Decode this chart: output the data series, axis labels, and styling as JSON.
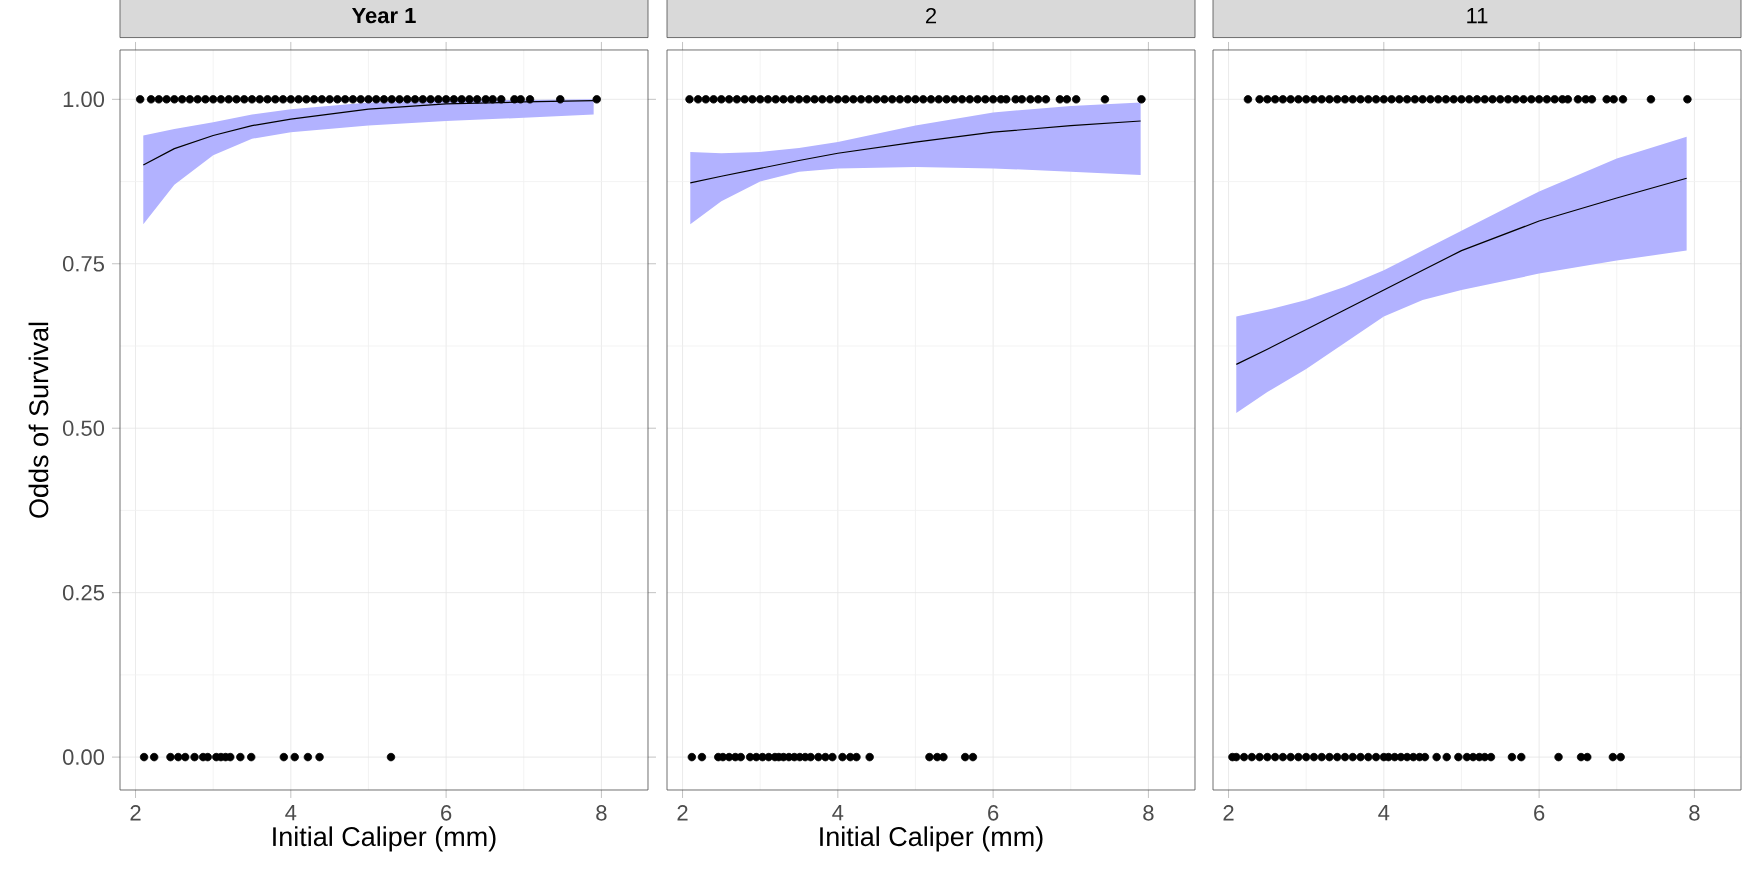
{
  "chart_data": [
    {
      "type": "scatter",
      "title": "Year 1",
      "xlabel": "Initial Caliper (mm)",
      "ylabel": "Odds of Survival",
      "xlim": [
        1.8,
        8.6
      ],
      "ylim": [
        -0.05,
        1.075
      ],
      "xticks": [
        2,
        4,
        6,
        8
      ],
      "yticks": [
        {
          "value": 0,
          "label": "0.00"
        },
        {
          "value": 0.25,
          "label": "0.25"
        },
        {
          "value": 0.5,
          "label": "0.50"
        },
        {
          "value": 0.75,
          "label": "0.75"
        },
        {
          "value": 1,
          "label": "1.00"
        }
      ],
      "grid": true,
      "marker": "circle",
      "series": [
        {
          "type": "line",
          "color": "#000000",
          "marker": "none",
          "x": [
            2.1,
            2.5,
            3,
            3.5,
            4,
            5,
            6,
            7,
            7.9
          ],
          "values": [
            0.9,
            0.925,
            0.945,
            0.96,
            0.97,
            0.985,
            0.993,
            0.996,
            0.998
          ],
          "lower": [
            0.81,
            0.87,
            0.915,
            0.94,
            0.95,
            0.96,
            0.967,
            0.972,
            0.977
          ],
          "upper": [
            0.945,
            0.955,
            0.965,
            0.977,
            0.985,
            0.995,
            0.998,
            0.999,
            1.0
          ]
        },
        {
          "color": "#000000",
          "x": [
            2.06,
            2.2,
            2.3,
            2.4,
            2.5,
            2.6,
            2.7,
            2.8,
            2.9,
            3.0,
            3.1,
            3.2,
            3.3,
            3.4,
            3.5,
            3.6,
            3.7,
            3.8,
            3.9,
            4.0,
            4.1,
            4.2,
            4.3,
            4.4,
            4.5,
            4.6,
            4.7,
            4.8,
            4.9,
            5.0,
            5.1,
            5.2,
            5.3,
            5.4,
            5.5,
            5.6,
            5.7,
            5.8,
            5.9,
            6.0,
            6.1,
            6.2,
            6.3,
            6.4,
            6.51,
            6.6,
            6.71,
            6.88,
            6.96,
            7.08,
            7.47,
            7.94
          ],
          "values": [
            1,
            1,
            1,
            1,
            1,
            1,
            1,
            1,
            1,
            1,
            1,
            1,
            1,
            1,
            1,
            1,
            1,
            1,
            1,
            1,
            1,
            1,
            1,
            1,
            1,
            1,
            1,
            1,
            1,
            1,
            1,
            1,
            1,
            1,
            1,
            1,
            1,
            1,
            1,
            1,
            1,
            1,
            1,
            1,
            1,
            1,
            1,
            1,
            1,
            1,
            1,
            1
          ]
        },
        {
          "color": "#000000",
          "x": [
            2.11,
            2.24,
            2.45,
            2.55,
            2.64,
            2.76,
            2.87,
            2.93,
            3.04,
            3.1,
            3.16,
            3.22,
            3.35,
            3.49,
            3.91,
            4.05,
            4.22,
            4.37,
            5.29
          ],
          "values": [
            0,
            0,
            0,
            0,
            0,
            0,
            0,
            0,
            0,
            0,
            0,
            0,
            0,
            0,
            0,
            0,
            0,
            0,
            0
          ]
        }
      ]
    },
    {
      "type": "scatter",
      "title": "2",
      "xlabel": "Initial Caliper (mm)",
      "xlim": [
        1.8,
        8.6
      ],
      "ylim": [
        -0.05,
        1.075
      ],
      "xticks": [
        2,
        4,
        6,
        8
      ],
      "yticks": [
        {
          "value": 0,
          "label": null
        },
        {
          "value": 0.25,
          "label": null
        },
        {
          "value": 0.5,
          "label": null
        },
        {
          "value": 0.75,
          "label": null
        },
        {
          "value": 1,
          "label": null
        }
      ],
      "tick_labels": "x",
      "grid": true,
      "marker": "circle",
      "series": [
        {
          "type": "line",
          "color": "#000000",
          "marker": "none",
          "x": [
            2.1,
            2.5,
            3,
            3.5,
            4,
            5,
            6,
            7,
            7.9
          ],
          "values": [
            0.873,
            0.883,
            0.895,
            0.907,
            0.918,
            0.935,
            0.95,
            0.96,
            0.967
          ],
          "lower": [
            0.81,
            0.845,
            0.875,
            0.89,
            0.895,
            0.897,
            0.895,
            0.89,
            0.885
          ],
          "upper": [
            0.92,
            0.918,
            0.92,
            0.926,
            0.935,
            0.96,
            0.98,
            0.99,
            0.995
          ]
        },
        {
          "color": "#000000",
          "x": [
            2.09,
            2.2,
            2.3,
            2.4,
            2.5,
            2.6,
            2.7,
            2.8,
            2.9,
            3.0,
            3.1,
            3.2,
            3.3,
            3.4,
            3.5,
            3.6,
            3.7,
            3.8,
            3.9,
            4.0,
            4.1,
            4.2,
            4.3,
            4.4,
            4.5,
            4.6,
            4.7,
            4.8,
            4.9,
            5.0,
            5.1,
            5.2,
            5.3,
            5.4,
            5.5,
            5.6,
            5.7,
            5.8,
            5.9,
            6.0,
            6.1,
            6.17,
            6.29,
            6.37,
            6.48,
            6.58,
            6.68,
            6.86,
            6.95,
            7.07,
            7.44,
            7.91
          ],
          "values": [
            1,
            1,
            1,
            1,
            1,
            1,
            1,
            1,
            1,
            1,
            1,
            1,
            1,
            1,
            1,
            1,
            1,
            1,
            1,
            1,
            1,
            1,
            1,
            1,
            1,
            1,
            1,
            1,
            1,
            1,
            1,
            1,
            1,
            1,
            1,
            1,
            1,
            1,
            1,
            1,
            1,
            1,
            1,
            1,
            1,
            1,
            1,
            1,
            1,
            1,
            1,
            1
          ]
        },
        {
          "color": "#000000",
          "x": [
            2.12,
            2.25,
            2.46,
            2.52,
            2.6,
            2.68,
            2.75,
            2.87,
            2.95,
            3.03,
            3.11,
            3.19,
            3.24,
            3.3,
            3.37,
            3.44,
            3.51,
            3.58,
            3.65,
            3.75,
            3.84,
            3.93,
            4.06,
            4.16,
            4.24,
            4.41,
            5.18,
            5.28,
            5.36,
            5.64,
            5.74
          ],
          "values": [
            0,
            0,
            0,
            0,
            0,
            0,
            0,
            0,
            0,
            0,
            0,
            0,
            0,
            0,
            0,
            0,
            0,
            0,
            0,
            0,
            0,
            0,
            0,
            0,
            0,
            0,
            0,
            0,
            0,
            0,
            0
          ]
        }
      ]
    },
    {
      "type": "scatter",
      "title": "11",
      "xlim": [
        1.8,
        8.6
      ],
      "ylim": [
        -0.05,
        1.075
      ],
      "xticks": [
        2,
        4,
        6,
        8
      ],
      "yticks": [
        {
          "value": 0,
          "label": null
        },
        {
          "value": 0.25,
          "label": null
        },
        {
          "value": 0.5,
          "label": null
        },
        {
          "value": 0.75,
          "label": null
        },
        {
          "value": 1,
          "label": null
        }
      ],
      "tick_labels": "x",
      "grid": true,
      "marker": "circle",
      "series": [
        {
          "type": "line",
          "color": "#000000",
          "marker": "none",
          "x": [
            2.1,
            2.5,
            3,
            3.5,
            4,
            4.5,
            5,
            6,
            7,
            7.9
          ],
          "values": [
            0.597,
            0.62,
            0.65,
            0.68,
            0.71,
            0.74,
            0.77,
            0.815,
            0.85,
            0.88
          ],
          "lower": [
            0.523,
            0.555,
            0.59,
            0.63,
            0.67,
            0.695,
            0.71,
            0.735,
            0.755,
            0.77
          ],
          "upper": [
            0.67,
            0.68,
            0.695,
            0.715,
            0.74,
            0.77,
            0.8,
            0.86,
            0.91,
            0.943
          ]
        },
        {
          "color": "#000000",
          "x": [
            2.25,
            2.4,
            2.5,
            2.6,
            2.7,
            2.8,
            2.9,
            3.0,
            3.1,
            3.2,
            3.3,
            3.4,
            3.5,
            3.6,
            3.7,
            3.8,
            3.9,
            4.0,
            4.1,
            4.2,
            4.3,
            4.4,
            4.5,
            4.6,
            4.7,
            4.8,
            4.9,
            5.0,
            5.1,
            5.2,
            5.3,
            5.4,
            5.5,
            5.6,
            5.7,
            5.8,
            5.9,
            6.0,
            6.1,
            6.2,
            6.3,
            6.37,
            6.5,
            6.6,
            6.68,
            6.87,
            6.96,
            7.08,
            7.44,
            7.91
          ],
          "values": [
            1,
            1,
            1,
            1,
            1,
            1,
            1,
            1,
            1,
            1,
            1,
            1,
            1,
            1,
            1,
            1,
            1,
            1,
            1,
            1,
            1,
            1,
            1,
            1,
            1,
            1,
            1,
            1,
            1,
            1,
            1,
            1,
            1,
            1,
            1,
            1,
            1,
            1,
            1,
            1,
            1,
            1,
            1,
            1,
            1,
            1,
            1,
            1,
            1,
            1
          ]
        },
        {
          "color": "#000000",
          "x": [
            2.05,
            2.1,
            2.2,
            2.3,
            2.4,
            2.5,
            2.6,
            2.7,
            2.8,
            2.9,
            3.0,
            3.1,
            3.2,
            3.3,
            3.4,
            3.5,
            3.6,
            3.7,
            3.8,
            3.9,
            4.0,
            4.06,
            4.14,
            4.22,
            4.3,
            4.38,
            4.46,
            4.53,
            4.68,
            4.81,
            4.96,
            5.07,
            5.15,
            5.23,
            5.3,
            5.38,
            5.65,
            5.77,
            6.25,
            6.54,
            6.62,
            6.95,
            7.05
          ],
          "values": [
            0,
            0,
            0,
            0,
            0,
            0,
            0,
            0,
            0,
            0,
            0,
            0,
            0,
            0,
            0,
            0,
            0,
            0,
            0,
            0,
            0,
            0,
            0,
            0,
            0,
            0,
            0,
            0,
            0,
            0,
            0,
            0,
            0,
            0,
            0,
            0,
            0,
            0,
            0,
            0,
            0,
            0,
            0
          ]
        }
      ]
    }
  ]
}
